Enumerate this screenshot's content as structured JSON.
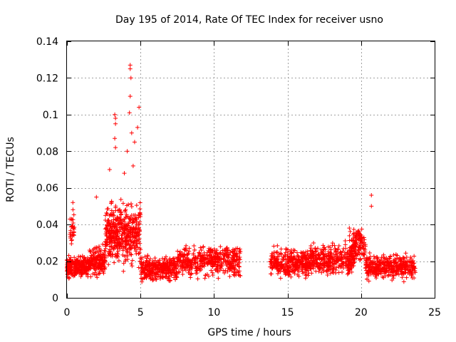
{
  "chart_data": {
    "type": "scatter",
    "title": "Day 195 of 2014, Rate Of TEC Index for receiver usno",
    "xlabel": "GPS time / hours",
    "ylabel": "ROTI / TECUs",
    "xlim": [
      0,
      25
    ],
    "ylim": [
      0,
      0.14
    ],
    "xticks": [
      0,
      5,
      10,
      15,
      20,
      25
    ],
    "xtick_labels": [
      "0",
      "5",
      "10",
      "15",
      "20",
      "25"
    ],
    "yticks": [
      0,
      0.02,
      0.04,
      0.06,
      0.08,
      0.1,
      0.12,
      0.14
    ],
    "ytick_labels": [
      "0",
      "0.02",
      "0.04",
      "0.06",
      "0.08",
      "0.1",
      "0.12",
      "0.14"
    ],
    "grid": true,
    "marker": "+",
    "color": "#ff0000",
    "data_gap_hours": [
      11.8,
      13.8
    ],
    "notable_points": [
      {
        "x": 4.3,
        "y": 0.127
      },
      {
        "x": 4.3,
        "y": 0.125
      },
      {
        "x": 4.35,
        "y": 0.12
      },
      {
        "x": 4.3,
        "y": 0.11
      },
      {
        "x": 4.25,
        "y": 0.101
      },
      {
        "x": 4.9,
        "y": 0.104
      },
      {
        "x": 3.25,
        "y": 0.1
      },
      {
        "x": 3.3,
        "y": 0.098
      },
      {
        "x": 3.3,
        "y": 0.095
      },
      {
        "x": 3.25,
        "y": 0.087
      },
      {
        "x": 3.3,
        "y": 0.082
      },
      {
        "x": 4.4,
        "y": 0.09
      },
      {
        "x": 4.6,
        "y": 0.085
      },
      {
        "x": 4.8,
        "y": 0.093
      },
      {
        "x": 2.9,
        "y": 0.07
      },
      {
        "x": 3.9,
        "y": 0.068
      },
      {
        "x": 4.1,
        "y": 0.08
      },
      {
        "x": 4.5,
        "y": 0.072
      },
      {
        "x": 0.4,
        "y": 0.052
      },
      {
        "x": 2.0,
        "y": 0.055
      },
      {
        "x": 20.7,
        "y": 0.056
      },
      {
        "x": 20.7,
        "y": 0.05
      }
    ],
    "series": [
      {
        "name": "ROTI",
        "segments": [
          {
            "x_start": 0.0,
            "x_end": 1.5,
            "base": 0.017,
            "spread": 0.008,
            "count": 240
          },
          {
            "x_start": 0.2,
            "x_end": 0.5,
            "base": 0.038,
            "spread": 0.013,
            "count": 30
          },
          {
            "x_start": 1.5,
            "x_end": 2.6,
            "base": 0.02,
            "spread": 0.01,
            "count": 170
          },
          {
            "x_start": 2.6,
            "x_end": 5.0,
            "base": 0.035,
            "spread": 0.022,
            "count": 480
          },
          {
            "x_start": 5.0,
            "x_end": 7.5,
            "base": 0.016,
            "spread": 0.009,
            "count": 320
          },
          {
            "x_start": 7.5,
            "x_end": 11.8,
            "base": 0.02,
            "spread": 0.011,
            "count": 460
          },
          {
            "x_start": 13.8,
            "x_end": 16.5,
            "base": 0.019,
            "spread": 0.01,
            "count": 340
          },
          {
            "x_start": 16.5,
            "x_end": 19.5,
            "base": 0.021,
            "spread": 0.011,
            "count": 360
          },
          {
            "x_start": 19.2,
            "x_end": 20.3,
            "base": 0.028,
            "spread": 0.013,
            "count": 130
          },
          {
            "x_start": 20.3,
            "x_end": 23.7,
            "base": 0.017,
            "spread": 0.009,
            "count": 380
          }
        ]
      }
    ]
  }
}
